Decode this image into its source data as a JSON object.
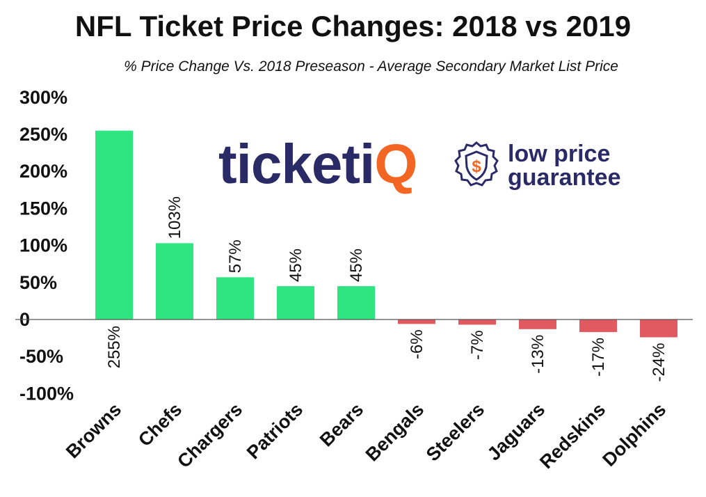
{
  "title": "NFL Ticket Price Changes: 2018 vs 2019",
  "subtitle": "% Price Change Vs. 2018 Preseason - Average Secondary Market List Price",
  "logo": {
    "word_main": "ticketi",
    "word_accent": "Q",
    "tagline_1": "low price",
    "tagline_2": "guarantee",
    "badge_icon": "dollar-shield-icon"
  },
  "colors": {
    "positive": "#2ee57f",
    "negative": "#e05a5f",
    "axis": "#555555",
    "brand": "#2a2a66",
    "brand_accent": "#f26522"
  },
  "chart_data": {
    "type": "bar",
    "title": "NFL Ticket Price Changes: 2018 vs 2019",
    "subtitle": "% Price Change Vs. 2018 Preseason - Average Secondary Market List Price",
    "xlabel": "",
    "ylabel": "",
    "ylim": [
      -100,
      300
    ],
    "yticks": [
      300,
      250,
      200,
      150,
      100,
      50,
      0,
      -50,
      -100
    ],
    "ytick_labels": [
      "300%",
      "250%",
      "200%",
      "150%",
      "100%",
      "50%",
      "0",
      "-50%",
      "-100%"
    ],
    "categories": [
      "Browns",
      "Chefs",
      "Chargers",
      "Patriots",
      "Bears",
      "Bengals",
      "Steelers",
      "Jaguars",
      "Redskins",
      "Dolphins"
    ],
    "values": [
      255,
      103,
      57,
      45,
      45,
      -6,
      -7,
      -13,
      -17,
      -24
    ],
    "data_labels": [
      "255%",
      "103%",
      "57%",
      "45%",
      "45%",
      "-6%",
      "-7%",
      "-13%",
      "-17%",
      "-24%"
    ],
    "grid": false,
    "legend": "none"
  }
}
